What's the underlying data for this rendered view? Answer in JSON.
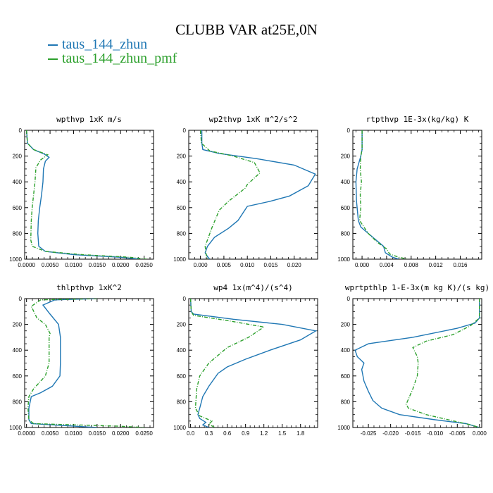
{
  "figure": {
    "title": "CLUBB VAR at25E,0N",
    "legend": [
      {
        "label": "taus_144_zhun",
        "color": "#1f77b4"
      },
      {
        "label": "taus_144_zhun_pmf",
        "color": "#2ca02c"
      }
    ]
  },
  "chart_data": [
    {
      "type": "line",
      "title": "wpthvp 1xK m/s",
      "xlim": [
        -0.0004,
        0.027
      ],
      "ylim": [
        1000,
        0
      ],
      "xticks": [
        "0.0000",
        "0.0050",
        "0.0100",
        "0.0150",
        "0.0200",
        "0.0250"
      ],
      "xtick_values": [
        0,
        0.005,
        0.01,
        0.015,
        0.02,
        0.025
      ],
      "yticks": [
        "0",
        "200",
        "400",
        "600",
        "800",
        "1000"
      ],
      "ytick_values": [
        0,
        200,
        400,
        600,
        800,
        1000
      ],
      "series": [
        {
          "color": "#1f77b4",
          "x": [
            0.0,
            0.0002,
            0.0015,
            0.0038,
            0.0048,
            0.004,
            0.0036,
            0.0035,
            0.0032,
            0.0028,
            0.0025,
            0.0024,
            0.0026,
            0.004,
            0.01,
            0.02,
            0.024
          ],
          "y": [
            0,
            100,
            150,
            185,
            210,
            240,
            300,
            400,
            500,
            600,
            700,
            800,
            900,
            940,
            965,
            985,
            1000
          ]
        },
        {
          "color": "#2ca02c",
          "dashed": true,
          "x": [
            0.0,
            0.0002,
            0.0015,
            0.0045,
            0.003,
            0.002,
            0.0018,
            0.0015,
            0.0012,
            0.001,
            0.0009,
            0.0012,
            0.004,
            0.012,
            0.022,
            0.0255
          ],
          "y": [
            0,
            100,
            150,
            190,
            230,
            290,
            400,
            500,
            600,
            700,
            850,
            900,
            940,
            965,
            985,
            1000
          ]
        }
      ]
    },
    {
      "type": "line",
      "title": "wp2thvp 1xK m^2/s^2",
      "xlim": [
        -0.0025,
        0.025
      ],
      "ylim": [
        1000,
        0
      ],
      "xticks": [
        "0.000",
        "0.005",
        "0.010",
        "0.015",
        "0.020"
      ],
      "xtick_values": [
        0,
        0.005,
        0.01,
        0.015,
        0.02
      ],
      "yticks": [
        "0",
        "200",
        "400",
        "600",
        "800",
        "1000"
      ],
      "ytick_values": [
        0,
        200,
        400,
        600,
        800,
        1000
      ],
      "series": [
        {
          "color": "#1f77b4",
          "x": [
            0.0003,
            0.0003,
            0.0005,
            0.004,
            0.012,
            0.02,
            0.0245,
            0.023,
            0.019,
            0.015,
            0.01,
            0.008,
            0.006,
            0.003,
            0.0015,
            0.001,
            0.0015,
            0.002
          ],
          "y": [
            0,
            100,
            150,
            180,
            220,
            270,
            340,
            430,
            510,
            550,
            590,
            700,
            760,
            830,
            900,
            950,
            980,
            1000
          ]
        },
        {
          "color": "#2ca02c",
          "dashed": true,
          "x": [
            0.0,
            0.0002,
            0.002,
            0.007,
            0.0115,
            0.0127,
            0.01,
            0.0095,
            0.006,
            0.004,
            0.0025,
            0.001,
            0.0012,
            0.0015
          ],
          "y": [
            0,
            100,
            160,
            200,
            250,
            330,
            420,
            450,
            550,
            620,
            750,
            900,
            960,
            1000
          ]
        }
      ]
    },
    {
      "type": "line",
      "title": "rtpthvp 1E-3x(kg/kg) K",
      "xlim": [
        -0.0015,
        0.0195
      ],
      "ylim": [
        1000,
        0
      ],
      "xticks": [
        "0.000",
        "0.004",
        "0.008",
        "0.012",
        "0.016"
      ],
      "xtick_values": [
        0,
        0.004,
        0.008,
        0.012,
        0.016
      ],
      "yticks": [
        "0",
        "200",
        "400",
        "600",
        "800",
        "1000"
      ],
      "ytick_values": [
        0,
        200,
        400,
        600,
        800,
        1000
      ],
      "series": [
        {
          "color": "#1f77b4",
          "x": [
            0.0,
            0.0,
            -0.0002,
            -0.0008,
            -0.001,
            -0.0009,
            -0.0006,
            -0.0002,
            0.001,
            0.0025,
            0.0035,
            0.0038,
            0.005,
            0.006
          ],
          "y": [
            0,
            150,
            200,
            300,
            400,
            550,
            700,
            750,
            800,
            860,
            900,
            950,
            985,
            1000
          ]
        },
        {
          "color": "#2ca02c",
          "dashed": true,
          "x": [
            0.0,
            0.0,
            -0.0002,
            -0.0003,
            -0.0001,
            -0.0003,
            -0.0002,
            -0.0004,
            0.001,
            0.0025,
            0.004,
            0.0045,
            0.006,
            0.0075
          ],
          "y": [
            0,
            150,
            200,
            300,
            400,
            500,
            600,
            700,
            800,
            870,
            920,
            960,
            985,
            1000
          ]
        }
      ]
    },
    {
      "type": "line",
      "title": "thlpthvp 1xK^2",
      "xlim": [
        -0.0004,
        0.027
      ],
      "ylim": [
        1000,
        0
      ],
      "xticks": [
        "0.0000",
        "0.0050",
        "0.0100",
        "0.0150",
        "0.0200",
        "0.0250"
      ],
      "xtick_values": [
        0,
        0.005,
        0.01,
        0.015,
        0.02,
        0.025
      ],
      "yticks": [
        "0",
        "200",
        "400",
        "600",
        "800",
        "1000"
      ],
      "ytick_values": [
        0,
        200,
        400,
        600,
        800,
        1000
      ],
      "series": [
        {
          "color": "#1f77b4",
          "x": [
            0.015,
            0.006,
            0.0035,
            0.005,
            0.0068,
            0.0072,
            0.0072,
            0.0071,
            0.0055,
            0.003,
            0.001,
            0.0005,
            0.0005,
            0.001,
            0.015
          ],
          "y": [
            0,
            10,
            50,
            120,
            200,
            300,
            500,
            600,
            680,
            730,
            760,
            850,
            940,
            970,
            1000
          ]
        },
        {
          "color": "#2ca02c",
          "dashed": true,
          "x": [
            0.015,
            0.003,
            0.001,
            0.0022,
            0.004,
            0.005,
            0.0048,
            0.0048,
            0.004,
            0.0015,
            0.0005,
            0.0003,
            0.0005,
            0.0015,
            0.02,
            0.025
          ],
          "y": [
            0,
            10,
            60,
            150,
            200,
            270,
            300,
            500,
            600,
            700,
            760,
            850,
            940,
            970,
            990,
            1000
          ]
        }
      ]
    },
    {
      "type": "line",
      "title": "wp4 1x(m^4)/(s^4)",
      "xlim": [
        -0.03,
        2.08
      ],
      "ylim": [
        1000,
        0
      ],
      "xticks": [
        "0.0",
        "0.3",
        "0.6",
        "0.9",
        "1.2",
        "1.5",
        "1.8"
      ],
      "xtick_values": [
        0,
        0.3,
        0.6,
        0.9,
        1.2,
        1.5,
        1.8
      ],
      "yticks": [
        "0",
        "200",
        "400",
        "600",
        "800",
        "1000"
      ],
      "ytick_values": [
        0,
        200,
        400,
        600,
        800,
        1000
      ],
      "series": [
        {
          "color": "#1f77b4",
          "x": [
            0.0,
            0.01,
            0.05,
            0.7,
            1.5,
            2.05,
            1.8,
            1.3,
            0.9,
            0.6,
            0.45,
            0.3,
            0.2,
            0.15,
            0.12,
            0.15,
            0.25,
            0.2,
            0.3
          ],
          "y": [
            0,
            100,
            120,
            160,
            200,
            250,
            320,
            400,
            470,
            530,
            580,
            680,
            760,
            850,
            900,
            930,
            960,
            980,
            1000
          ]
        },
        {
          "color": "#2ca02c",
          "dashed": true,
          "x": [
            0.0,
            0.01,
            0.05,
            0.6,
            1.2,
            0.95,
            0.6,
            0.3,
            0.15,
            0.1,
            0.08,
            0.15,
            0.35,
            0.3,
            0.4
          ],
          "y": [
            0,
            100,
            130,
            170,
            220,
            300,
            380,
            500,
            600,
            700,
            850,
            910,
            950,
            975,
            1000
          ]
        }
      ]
    },
    {
      "type": "line",
      "title": "wprtpthlp 1-E-3x(m kg K)/(s kg)",
      "xlim": [
        -0.0285,
        0.0005
      ],
      "ylim": [
        1000,
        0
      ],
      "xticks": [
        "-0.025",
        "-0.020",
        "-0.015",
        "-0.010",
        "-0.005",
        "0.000"
      ],
      "xtick_values": [
        -0.025,
        -0.02,
        -0.015,
        -0.01,
        -0.005,
        0
      ],
      "yticks": [
        "0",
        "200",
        "400",
        "600",
        "800",
        "1000"
      ],
      "ytick_values": [
        0,
        200,
        400,
        600,
        800,
        1000
      ],
      "series": [
        {
          "color": "#1f77b4",
          "x": [
            0.0,
            0.0,
            -0.001,
            -0.005,
            -0.015,
            -0.025,
            -0.028,
            -0.0275,
            -0.026,
            -0.0265,
            -0.026,
            -0.025,
            -0.024,
            -0.023,
            -0.022,
            -0.018,
            -0.01,
            -0.003,
            -0.001,
            0.0
          ],
          "y": [
            0,
            150,
            190,
            230,
            300,
            350,
            400,
            450,
            500,
            550,
            640,
            720,
            790,
            820,
            850,
            900,
            940,
            970,
            990,
            1000
          ]
        },
        {
          "color": "#2ca02c",
          "dashed": true,
          "x": [
            0.0,
            0.0,
            -0.002,
            -0.006,
            -0.012,
            -0.015,
            -0.014,
            -0.0138,
            -0.014,
            -0.015,
            -0.0165,
            -0.016,
            -0.012,
            -0.007,
            -0.002,
            0.0
          ],
          "y": [
            0,
            150,
            210,
            280,
            330,
            380,
            450,
            500,
            600,
            700,
            820,
            850,
            900,
            940,
            980,
            1000
          ]
        }
      ]
    }
  ]
}
